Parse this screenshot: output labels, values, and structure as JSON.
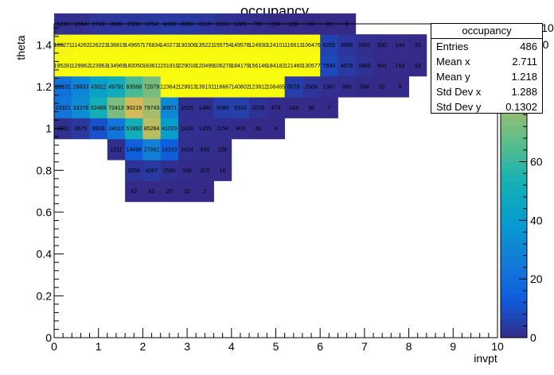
{
  "chart_data": {
    "type": "heatmap",
    "title": "occupancy",
    "xlabel": "invpt",
    "ylabel": "theta",
    "xlim": [
      0,
      10
    ],
    "ylim": [
      0,
      1.5
    ],
    "x_ticks": [
      "0",
      "1",
      "2",
      "3",
      "4",
      "5",
      "6",
      "7",
      "8",
      "9",
      "10"
    ],
    "y_ticks": [
      "0",
      "0.2",
      "0.4",
      "0.6",
      "0.8",
      "1",
      "1.2",
      "1.4"
    ],
    "x_bin_width": 0.4,
    "x_bin_start": 0,
    "y_bin_width": 0.1,
    "y_bin_start": 0.65,
    "colorbar": {
      "ticks": [
        "0",
        "20",
        "40",
        "60",
        "80",
        "100"
      ],
      "exponent": "×10³",
      "max": 107
    },
    "rows": [
      {
        "y": 0.7,
        "x0": 1.6,
        "values": [
          62,
          62,
          20,
          22,
          2
        ]
      },
      {
        "y": 0.8,
        "x0": 1.6,
        "values": [
          2656,
          4007,
          1580,
          538,
          325,
          16
        ]
      },
      {
        "y": 0.9,
        "x0": 1.2,
        "values": [
          1011,
          14496,
          27962,
          14193,
          1424,
          934,
          136
        ]
      },
      {
        "y": 1.0,
        "x0": 0.0,
        "values": [
          1331,
          3675,
          9936,
          24012,
          51882,
          85264,
          41029,
          1418,
          1355,
          1154,
          409,
          30,
          4
        ]
      },
      {
        "y": 1.1,
        "x0": 0.0,
        "values": [
          23321,
          33376,
          52469,
          72413,
          90219,
          79743,
          30871,
          1515,
          1486,
          5080,
          5310,
          2019,
          474,
          104,
          36,
          7
        ]
      },
      {
        "y": 1.2,
        "x0": 0.0,
        "values": [
          22101,
          29933,
          43022,
          49791,
          63568,
          72079,
          123642,
          129913,
          139131,
          116667,
          140802,
          123912,
          108465,
          5079,
          2509,
          1367,
          990,
          364,
          51,
          9
        ]
      },
      {
        "y": 1.3,
        "x0": 0.0,
        "values": [
          195281,
          129962,
          123963,
          134969,
          160050,
          183611,
          151910,
          229018,
          120499,
          106278,
          184179,
          156146,
          184182,
          121460,
          130577,
          7593,
          4079,
          1865,
          641,
          153,
          33
        ]
      },
      {
        "y": 1.4,
        "x0": 0.0,
        "values": [
          105271,
          114262,
          126223,
          136819,
          149657,
          176834,
          140273,
          130306,
          135221,
          155754,
          149578,
          124930,
          124101,
          116613,
          106476,
          6255,
          3098,
          1501,
          590,
          144,
          33
        ]
      },
      {
        "y": 1.5,
        "x0": 0.0,
        "values": [
          1219,
          1504,
          2748,
          3140,
          2931,
          3794,
          4390,
          3960,
          3119,
          2103,
          1301,
          707,
          294,
          128,
          63,
          22,
          9
        ]
      }
    ]
  },
  "stats": {
    "title": "occupancy",
    "rows": [
      {
        "label": "Entries",
        "value": "486"
      },
      {
        "label": "Mean x",
        "value": "2.711"
      },
      {
        "label": "Mean y",
        "value": "1.218"
      },
      {
        "label": "Std Dev x",
        "value": "1.288"
      },
      {
        "label": "Std Dev y",
        "value": "0.1302"
      }
    ]
  }
}
